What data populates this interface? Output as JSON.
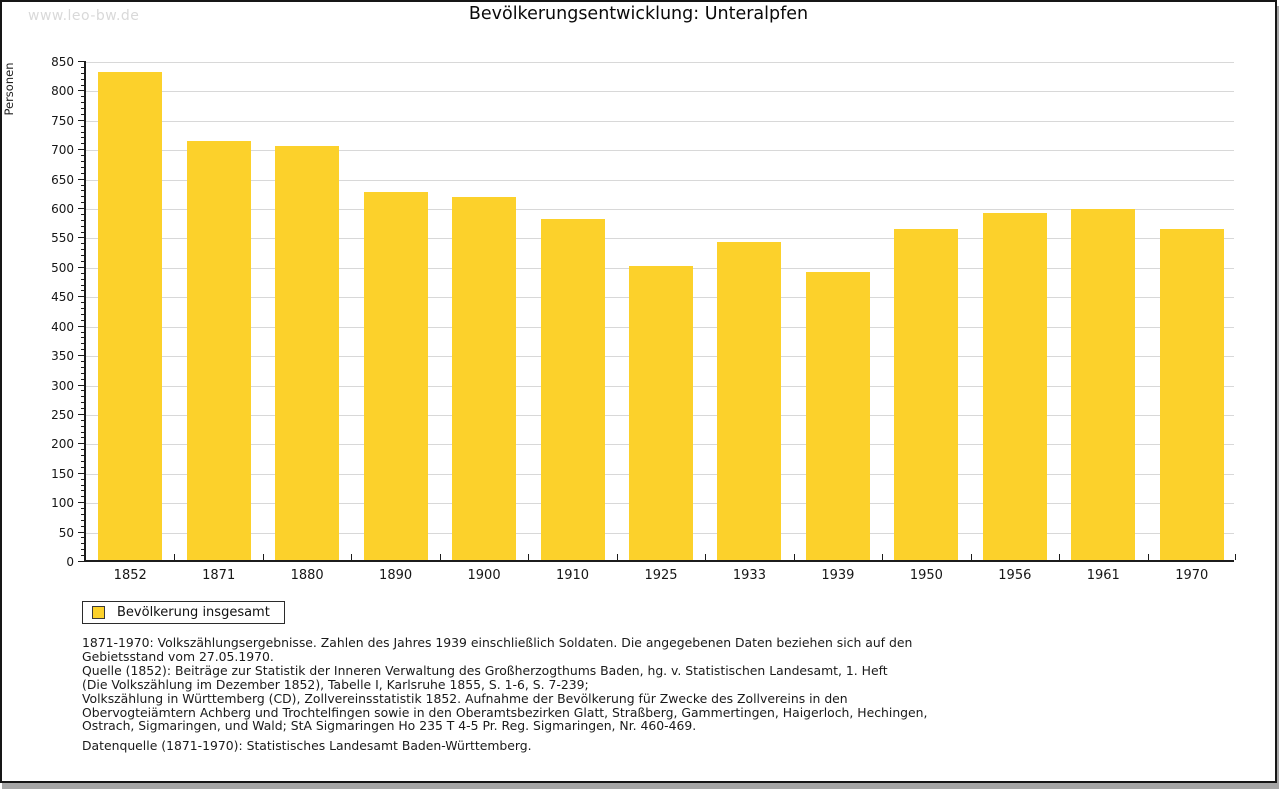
{
  "watermark": "www.leo-bw.de",
  "header": {
    "title": "Bevölkerungsentwicklung: Unteralpfen"
  },
  "chart_data": {
    "type": "bar",
    "title": "Bevölkerungsentwicklung: Unteralpfen",
    "xlabel": "",
    "ylabel": "Personen",
    "categories": [
      "1852",
      "1871",
      "1880",
      "1890",
      "1900",
      "1910",
      "1925",
      "1933",
      "1939",
      "1950",
      "1956",
      "1961",
      "1970"
    ],
    "values": [
      829,
      713,
      703,
      625,
      617,
      579,
      500,
      541,
      489,
      562,
      590,
      597,
      563
    ],
    "series_name": "Bevölkerung insgesamt",
    "ylim": [
      0,
      850
    ],
    "ytick_step": 50,
    "y_minor_tick_step": 10,
    "grid": true,
    "bar_color": "#fcd12b",
    "gridline_color": "#d8d8d8",
    "axis_color": "#1c1c1c",
    "legend_position": "bottom-left"
  },
  "legend": {
    "label": "Bevölkerung insgesamt",
    "swatch_color": "#fcd12b"
  },
  "footer": {
    "notes": "1871-1970: Volkszählungsergebnisse. Zahlen des Jahres 1939 einschließlich Soldaten. Die angegebenen Daten beziehen sich auf den\nGebietsstand vom 27.05.1970.\nQuelle (1852): Beiträge zur Statistik der Inneren Verwaltung des Großherzogthums Baden, hg. v. Statistischen Landesamt, 1. Heft\n(Die Volkszählung im Dezember 1852), Tabelle I, Karlsruhe 1855, S. 1-6, S. 7-239;\nVolkszählung in Württemberg (CD), Zollvereinsstatistik 1852. Aufnahme der Bevölkerung für Zwecke des Zollvereins in den\nObervogteiämtern Achberg und Trochtelfingen sowie in den Oberamtsbezirken Glatt, Straßberg, Gammertingen, Haigerloch, Hechingen,\nOstrach, Sigmaringen, und Wald; StA Sigmaringen Ho 235 T 4-5 Pr. Reg. Sigmaringen, Nr. 460-469.",
    "source": "Datenquelle (1871-1970): Statistisches Landesamt Baden-Württemberg."
  }
}
